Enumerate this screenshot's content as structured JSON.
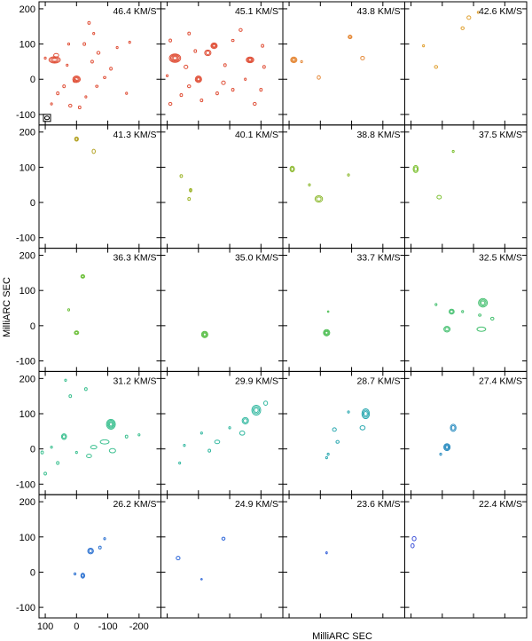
{
  "chart_data": {
    "type": "contour",
    "xlabel": "MilliARC SEC",
    "ylabel": "MilliARC SEC",
    "xlim": [
      120,
      -270
    ],
    "ylim": [
      -130,
      220
    ],
    "xticks": [
      100,
      0,
      -100,
      -200
    ],
    "xtick_labels": [
      "100",
      "0",
      "-100",
      "-200"
    ],
    "yticks": [
      200,
      100,
      0,
      -100
    ],
    "ytick_labels": [
      "200",
      "100",
      "0",
      "-100"
    ],
    "beam_marker": true,
    "panels": [
      {
        "label": "46.4 KM/S",
        "color": "#e05038",
        "features": [
          [
            70,
            55,
            18,
            9,
            3
          ],
          [
            65,
            68,
            8,
            5,
            1
          ],
          [
            0,
            0,
            12,
            9,
            3
          ],
          [
            5,
            -5,
            6,
            4,
            1
          ],
          [
            -70,
            75,
            5,
            4,
            1
          ],
          [
            -40,
            160,
            4,
            4,
            1
          ],
          [
            -25,
            100,
            4,
            4,
            1
          ],
          [
            -50,
            50,
            4,
            4,
            1
          ],
          [
            -110,
            30,
            4,
            4,
            1
          ],
          [
            -160,
            -40,
            3,
            3,
            1
          ],
          [
            -170,
            105,
            3,
            3,
            1
          ],
          [
            -130,
            90,
            3,
            3,
            1
          ],
          [
            40,
            -20,
            4,
            4,
            1
          ],
          [
            60,
            -40,
            4,
            4,
            1
          ],
          [
            80,
            -70,
            3,
            3,
            1
          ],
          [
            20,
            -75,
            5,
            4,
            1
          ],
          [
            -10,
            -80,
            4,
            4,
            1
          ],
          [
            -65,
            -20,
            4,
            3,
            1
          ],
          [
            -30,
            -50,
            3,
            3,
            1
          ],
          [
            100,
            60,
            3,
            3,
            1
          ],
          [
            25,
            100,
            3,
            3,
            1
          ],
          [
            -55,
            130,
            3,
            3,
            1
          ],
          [
            30,
            40,
            3,
            3,
            1
          ],
          [
            -90,
            5,
            4,
            3,
            1
          ]
        ]
      },
      {
        "label": "45.1 KM/S",
        "color": "#e05038",
        "features": [
          [
            75,
            60,
            18,
            12,
            4
          ],
          [
            -30,
            75,
            10,
            8,
            2
          ],
          [
            -50,
            95,
            10,
            8,
            3
          ],
          [
            -165,
            55,
            12,
            8,
            3
          ],
          [
            0,
            0,
            10,
            9,
            3
          ],
          [
            -80,
            -10,
            6,
            5,
            1
          ],
          [
            40,
            35,
            6,
            5,
            1
          ],
          [
            30,
            -20,
            5,
            4,
            1
          ],
          [
            55,
            -45,
            4,
            4,
            1
          ],
          [
            90,
            -70,
            5,
            4,
            1
          ],
          [
            -10,
            -60,
            4,
            4,
            1
          ],
          [
            -60,
            -40,
            4,
            4,
            1
          ],
          [
            -110,
            -30,
            4,
            4,
            1
          ],
          [
            -180,
            -70,
            5,
            4,
            1
          ],
          [
            -200,
            -30,
            4,
            4,
            1
          ],
          [
            -210,
            35,
            4,
            4,
            1
          ],
          [
            -205,
            95,
            4,
            4,
            1
          ],
          [
            -135,
            140,
            5,
            4,
            1
          ],
          [
            -110,
            110,
            4,
            3,
            1
          ],
          [
            90,
            110,
            4,
            4,
            1
          ],
          [
            30,
            130,
            4,
            4,
            1
          ],
          [
            -85,
            40,
            4,
            4,
            1
          ],
          [
            10,
            80,
            4,
            4,
            1
          ],
          [
            -150,
            0,
            3,
            3,
            1
          ],
          [
            100,
            10,
            3,
            3,
            1
          ]
        ]
      },
      {
        "label": "43.8 KM/S",
        "color": "#e58a3a",
        "features": [
          [
            85,
            55,
            10,
            8,
            3
          ],
          [
            -95,
            120,
            6,
            5,
            2
          ],
          [
            -135,
            60,
            6,
            5,
            1
          ],
          [
            5,
            5,
            5,
            5,
            1
          ],
          [
            60,
            50,
            3,
            3,
            1
          ]
        ]
      },
      {
        "label": "42.6 KM/S",
        "color": "#e0a030",
        "features": [
          [
            -85,
            175,
            6,
            5,
            1
          ],
          [
            -65,
            145,
            5,
            4,
            1
          ],
          [
            -115,
            190,
            3,
            3,
            1
          ],
          [
            20,
            35,
            5,
            4,
            1
          ],
          [
            60,
            95,
            3,
            3,
            1
          ]
        ]
      },
      {
        "label": "41.3 KM/S",
        "color": "#b5a428",
        "features": [
          [
            0,
            180,
            6,
            6,
            2
          ],
          [
            -55,
            145,
            5,
            6,
            1
          ]
        ]
      },
      {
        "label": "40.1 KM/S",
        "color": "#9db42a",
        "features": [
          [
            55,
            75,
            4,
            4,
            1
          ],
          [
            25,
            35,
            4,
            5,
            2
          ],
          [
            30,
            10,
            4,
            4,
            1
          ]
        ]
      },
      {
        "label": "38.8 KM/S",
        "color": "#8bb82c",
        "features": [
          [
            90,
            95,
            7,
            8,
            2
          ],
          [
            5,
            10,
            12,
            9,
            2
          ],
          [
            35,
            50,
            3,
            3,
            1
          ],
          [
            -90,
            78,
            3,
            3,
            1
          ]
        ]
      },
      {
        "label": "37.5 KM/S",
        "color": "#7cc030",
        "features": [
          [
            85,
            95,
            8,
            10,
            2
          ],
          [
            10,
            15,
            7,
            5,
            1
          ],
          [
            -35,
            145,
            3,
            3,
            1
          ]
        ]
      },
      {
        "label": "36.3 KM/S",
        "color": "#6ec03c",
        "features": [
          [
            -20,
            140,
            6,
            5,
            2
          ],
          [
            25,
            45,
            3,
            3,
            1
          ],
          [
            0,
            -20,
            7,
            5,
            2
          ]
        ]
      },
      {
        "label": "35.0 KM/S",
        "color": "#5cc04a",
        "features": [
          [
            -20,
            -25,
            10,
            9,
            3
          ]
        ]
      },
      {
        "label": "33.7 KM/S",
        "color": "#52c058",
        "features": [
          [
            -20,
            -20,
            10,
            9,
            3
          ],
          [
            -25,
            40,
            2,
            2,
            1
          ]
        ]
      },
      {
        "label": "32.5 KM/S",
        "color": "#45c070",
        "features": [
          [
            -130,
            65,
            14,
            12,
            3
          ],
          [
            -30,
            40,
            8,
            7,
            2
          ],
          [
            -15,
            -10,
            10,
            8,
            2
          ],
          [
            -125,
            -10,
            14,
            6,
            1
          ],
          [
            -160,
            20,
            5,
            4,
            1
          ],
          [
            -120,
            30,
            4,
            3,
            1
          ],
          [
            20,
            60,
            3,
            3,
            1
          ],
          [
            -65,
            40,
            3,
            3,
            1
          ]
        ]
      },
      {
        "label": "31.2 KM/S",
        "color": "#3cc090",
        "features": [
          [
            -110,
            70,
            14,
            14,
            4
          ],
          [
            40,
            35,
            8,
            8,
            2
          ],
          [
            -90,
            20,
            14,
            6,
            1
          ],
          [
            -55,
            5,
            10,
            5,
            1
          ],
          [
            -40,
            -20,
            8,
            5,
            1
          ],
          [
            -115,
            -5,
            10,
            6,
            1
          ],
          [
            100,
            -70,
            4,
            4,
            1
          ],
          [
            60,
            -40,
            4,
            4,
            1
          ],
          [
            110,
            -10,
            4,
            4,
            1
          ],
          [
            20,
            150,
            4,
            4,
            1
          ],
          [
            -30,
            170,
            4,
            4,
            1
          ],
          [
            35,
            195,
            3,
            3,
            1
          ],
          [
            -160,
            35,
            4,
            4,
            1
          ],
          [
            -200,
            40,
            3,
            3,
            1
          ],
          [
            80,
            5,
            3,
            3,
            1
          ],
          [
            0,
            -10,
            3,
            3,
            1
          ]
        ]
      },
      {
        "label": "29.9 KM/S",
        "color": "#32b8a0",
        "features": [
          [
            -185,
            110,
            14,
            14,
            3
          ],
          [
            -150,
            80,
            10,
            9,
            2
          ],
          [
            -140,
            45,
            8,
            6,
            1
          ],
          [
            -215,
            130,
            6,
            6,
            1
          ],
          [
            -60,
            20,
            8,
            5,
            1
          ],
          [
            -35,
            -5,
            4,
            4,
            1
          ],
          [
            45,
            10,
            3,
            3,
            1
          ],
          [
            60,
            -40,
            3,
            3,
            1
          ],
          [
            -10,
            45,
            3,
            3,
            1
          ],
          [
            -100,
            60,
            3,
            3,
            1
          ]
        ]
      },
      {
        "label": "28.7 KM/S",
        "color": "#2aa8b0",
        "features": [
          [
            -145,
            100,
            12,
            14,
            3
          ],
          [
            -135,
            60,
            8,
            6,
            1
          ],
          [
            -45,
            55,
            6,
            5,
            1
          ],
          [
            -55,
            20,
            5,
            4,
            1
          ],
          [
            -25,
            -15,
            3,
            3,
            1
          ],
          [
            -90,
            105,
            3,
            3,
            1
          ],
          [
            -20,
            -25,
            3,
            3,
            1
          ]
        ]
      },
      {
        "label": "27.4 KM/S",
        "color": "#2a8cc0",
        "features": [
          [
            -35,
            60,
            9,
            10,
            2
          ],
          [
            -15,
            5,
            10,
            10,
            3
          ],
          [
            5,
            -15,
            3,
            3,
            1
          ]
        ]
      },
      {
        "label": "26.2 KM/S",
        "color": "#2a70d0",
        "features": [
          [
            -45,
            60,
            9,
            8,
            2
          ],
          [
            -75,
            70,
            4,
            4,
            1
          ],
          [
            -20,
            -10,
            6,
            7,
            2
          ],
          [
            -90,
            95,
            3,
            3,
            1
          ],
          [
            5,
            -5,
            3,
            3,
            1
          ]
        ]
      },
      {
        "label": "24.9 KM/S",
        "color": "#2a64d8",
        "features": [
          [
            -80,
            95,
            5,
            4,
            1
          ],
          [
            65,
            40,
            6,
            5,
            1
          ],
          [
            -10,
            -20,
            2,
            2,
            1
          ]
        ]
      },
      {
        "label": "23.6 KM/S",
        "color": "#2e5ad8",
        "features": [
          [
            -20,
            55,
            2,
            3,
            1
          ]
        ]
      },
      {
        "label": "22.4 KM/S",
        "color": "#3c50d8",
        "features": [
          [
            90,
            95,
            6,
            6,
            1
          ],
          [
            95,
            75,
            5,
            6,
            1
          ]
        ]
      }
    ]
  }
}
